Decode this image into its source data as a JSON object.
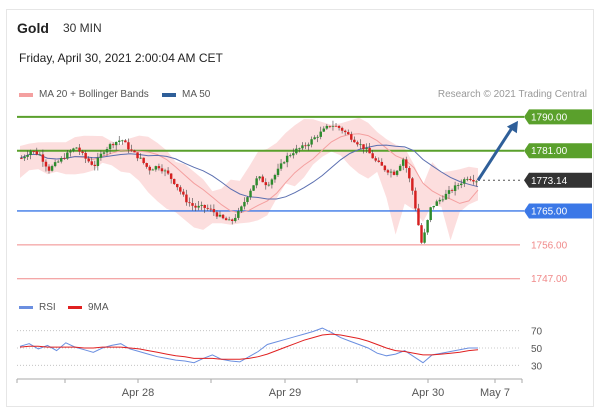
{
  "header": {
    "instrument": "Gold",
    "timeframe": "30 MIN",
    "datetime": "Friday, April 30, 2021 2:00:04 AM CET"
  },
  "legend": {
    "ma20_label": "MA 20 + Bollinger Bands",
    "ma50_label": "MA 50",
    "credit": "Research © 2021 Trading Central"
  },
  "colors": {
    "resistance": "#5aa02c",
    "support": "#3b78e7",
    "weak_support": "#f08a8a",
    "price_tag": "#333333",
    "bollinger": "#fbd3d3",
    "ma20": "#f4a0a0",
    "ma50": "#5b6fb0",
    "arrow": "#2f5f99",
    "rsi": "#6b8fe0",
    "rsi_ma": "#e02020"
  },
  "chart_data": {
    "type": "candlestick",
    "y_range": [
      1744,
      1795
    ],
    "x_labels": [
      "Apr 28",
      "Apr 29",
      "Apr 30",
      "May 7"
    ],
    "levels": [
      {
        "label": "1790.00",
        "value": 1790.0,
        "kind": "resistance"
      },
      {
        "label": "1781.00",
        "value": 1781.0,
        "kind": "resistance"
      },
      {
        "label": "1773.14",
        "value": 1773.14,
        "kind": "current"
      },
      {
        "label": "1765.00",
        "value": 1765.0,
        "kind": "support"
      },
      {
        "label": "1756.00",
        "value": 1756.0,
        "kind": "weak-support"
      },
      {
        "label": "1747.00",
        "value": 1747.0,
        "kind": "weak-support"
      }
    ],
    "price_path": [
      1779,
      1781,
      1780,
      1776,
      1778,
      1780,
      1782,
      1779,
      1777,
      1781,
      1783,
      1784,
      1781,
      1779,
      1776,
      1777,
      1775,
      1772,
      1768,
      1766,
      1766,
      1765,
      1763,
      1762,
      1765,
      1770,
      1774,
      1772,
      1775,
      1779,
      1781,
      1782,
      1784,
      1786,
      1788,
      1787,
      1785,
      1783,
      1781,
      1778,
      1776,
      1775,
      1779,
      1770,
      1756,
      1766,
      1768,
      1770,
      1772,
      1774,
      1773.14
    ],
    "forecast": {
      "from": 1773.14,
      "to": 1790.0
    },
    "rsi": {
      "levels": [
        70,
        50,
        30
      ],
      "legend": [
        "RSI",
        "9MA"
      ],
      "rsi_path": [
        52,
        55,
        49,
        53,
        47,
        56,
        51,
        48,
        45,
        50,
        53,
        55,
        49,
        46,
        43,
        40,
        38,
        36,
        35,
        33,
        38,
        42,
        37,
        35,
        34,
        40,
        46,
        54,
        57,
        60,
        63,
        66,
        69,
        73,
        68,
        62,
        58,
        54,
        50,
        44,
        41,
        43,
        47,
        40,
        33,
        42,
        44,
        46,
        48,
        50,
        50
      ],
      "ma_path": [
        51,
        52,
        52,
        51,
        51,
        51,
        51,
        50,
        50,
        51,
        51,
        51,
        50,
        49,
        47,
        45,
        43,
        41,
        40,
        38,
        38,
        38,
        37,
        37,
        37,
        38,
        40,
        43,
        47,
        51,
        55,
        59,
        62,
        65,
        66,
        65,
        63,
        61,
        58,
        54,
        50,
        47,
        46,
        44,
        42,
        42,
        43,
        44,
        45,
        47,
        48
      ]
    }
  }
}
